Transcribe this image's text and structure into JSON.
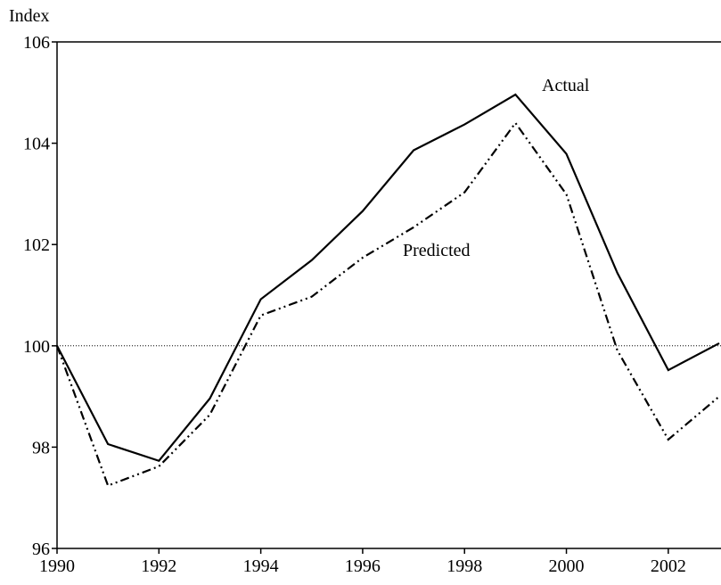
{
  "chart_data": {
    "type": "line",
    "ylabel": "Index",
    "x": [
      1990,
      1991,
      1992,
      1993,
      1994,
      1995,
      1996,
      1997,
      1998,
      1999,
      2000,
      2001,
      2002,
      2003
    ],
    "series": [
      {
        "name": "Actual",
        "color": "#000000",
        "dash": "solid",
        "values": [
          100,
          98.06,
          97.73,
          98.96,
          100.92,
          101.69,
          102.66,
          103.86,
          104.37,
          104.96,
          103.79,
          101.44,
          99.52,
          100.05
        ]
      },
      {
        "name": "Predicted",
        "color": "#000000",
        "dash": "dash-dot-dot",
        "values": [
          100,
          97.24,
          97.62,
          98.64,
          100.6,
          100.97,
          101.74,
          102.34,
          103.03,
          104.4,
          102.99,
          99.91,
          98.15,
          99.0
        ]
      }
    ],
    "xlim": [
      1990,
      2003
    ],
    "xticks": [
      1990,
      1992,
      1994,
      1996,
      1998,
      2000,
      2002
    ],
    "ylim": [
      96,
      106
    ],
    "yticks": [
      96,
      98,
      100,
      102,
      104,
      106
    ],
    "reference_line": 100
  }
}
